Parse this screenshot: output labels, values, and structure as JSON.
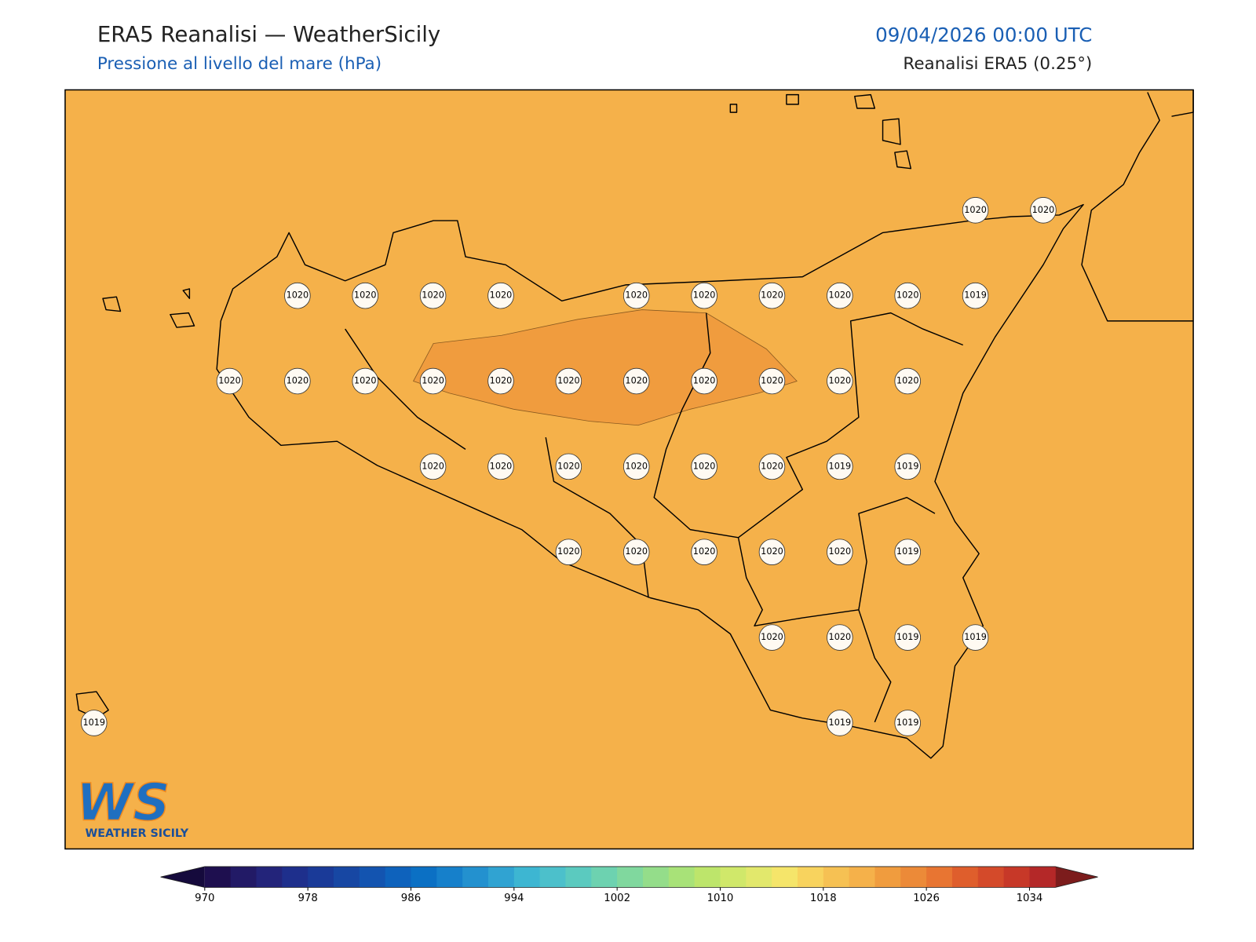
{
  "header": {
    "title": "ERA5 Reanalisi — WeatherSicily",
    "subtitle": "Pressione al livello del mare (hPa)",
    "valid_time": "09/04/2026 00:00 UTC",
    "source": "Reanalisi ERA5 (0.25°)"
  },
  "stations": {
    "values": [
      1020,
      1020,
      1020,
      1020,
      1020,
      1020,
      1020,
      1020,
      1020,
      1020,
      1020,
      1019,
      1020,
      1020,
      1020,
      1020,
      1020,
      1020,
      1020,
      1020,
      1020,
      1020,
      1020,
      1020,
      1020,
      1020,
      1020,
      1020,
      1020,
      1019,
      1019,
      1020,
      1020,
      1020,
      1020,
      1020,
      1019,
      1020,
      1020,
      1019,
      1019,
      1019,
      1019,
      1019
    ]
  },
  "colorbar": {
    "lim": [
      970,
      1036
    ],
    "ticks": [
      970,
      978,
      986,
      994,
      1002,
      1010,
      1018,
      1026,
      1034
    ],
    "colors": [
      "#1e0f4f",
      "#221a66",
      "#23247a",
      "#1e2f8c",
      "#1a3a98",
      "#1747a3",
      "#1354b0",
      "#0e62bc",
      "#0b70c4",
      "#1680cb",
      "#2391cf",
      "#30a3d2",
      "#3db6d2",
      "#4cc0cb",
      "#5bcabf",
      "#6dd2b0",
      "#80d89e",
      "#94dd8a",
      "#a8e278",
      "#bde56b",
      "#d0e86a",
      "#e2e86c",
      "#f5e56a",
      "#f8d35e",
      "#f6c153",
      "#f5b14a",
      "#f09c3e",
      "#ec8a38",
      "#e87532",
      "#df5e2c",
      "#d44a2a",
      "#c73828",
      "#b42828"
    ],
    "under_color": "#150a3c",
    "over_color": "#7c1c1c"
  },
  "logo": {
    "mark": "WS",
    "text": "WEATHER SICILY"
  }
}
